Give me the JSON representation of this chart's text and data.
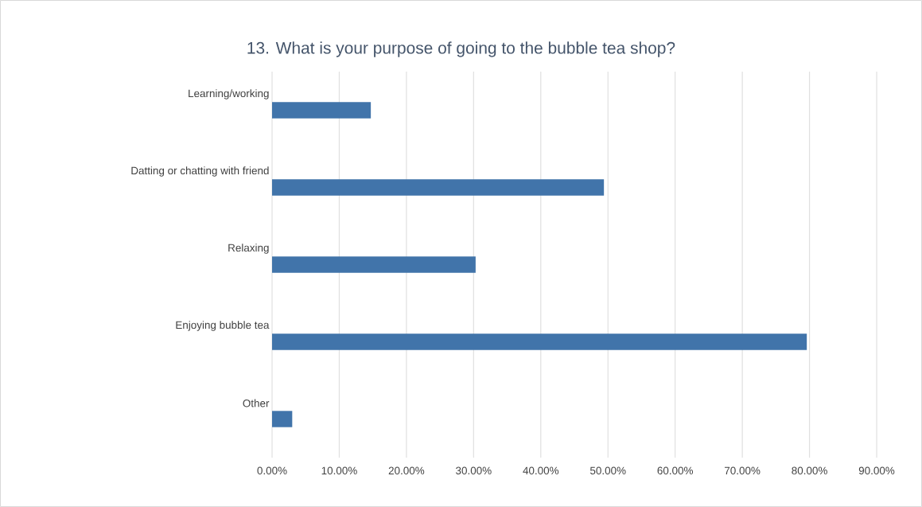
{
  "chart_data": {
    "type": "bar",
    "orientation": "horizontal",
    "title": "13. What is your purpose of going to the bubble tea shop?",
    "categories": [
      "Learning/working",
      "Datting or chatting with friend",
      "Relaxing",
      "Enjoying bubble tea",
      "Other"
    ],
    "values": [
      14.7,
      49.4,
      30.3,
      79.6,
      3.0
    ],
    "color": "#4174aa",
    "xlim": [
      0,
      90
    ],
    "xticks": [
      {
        "value": 0,
        "label": "0.00%"
      },
      {
        "value": 10,
        "label": "10.00%"
      },
      {
        "value": 20,
        "label": "20.00%"
      },
      {
        "value": 30,
        "label": "30.00%"
      },
      {
        "value": 40,
        "label": "40.00%"
      },
      {
        "value": 50,
        "label": "50.00%"
      },
      {
        "value": 60,
        "label": "60.00%"
      },
      {
        "value": 70,
        "label": "70.00%"
      },
      {
        "value": 80,
        "label": "80.00%"
      },
      {
        "value": 90,
        "label": "90.00%"
      }
    ],
    "grid": "x"
  }
}
